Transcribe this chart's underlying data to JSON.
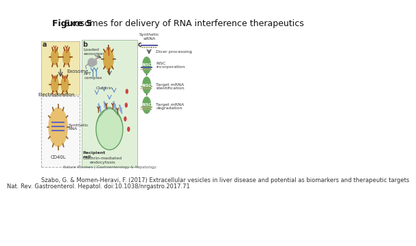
{
  "title_bold": "Figure 5",
  "title_normal": " Exosomes for delivery of RNA interference therapeutics",
  "citation_line1": "Szabo, G. & Momen-Heravi, F. (2017) Extracellular vesicles in liver disease and potential as biomarkers and therapeutic targets",
  "citation_line2": "Nat. Rev. Gastroenterol. Hepatol. doi:10.1038/nrgastro.2017.71",
  "journal_text": "Nature Reviews | Gastroenterology & Hepatology",
  "bg_color": "#ffffff",
  "title_fontsize": 9,
  "citation_fontsize": 6.0,
  "label_a": "a",
  "label_b": "b",
  "label_c": "c",
  "text_exosome": "Exosome",
  "text_electroporation": "Electroporation",
  "text_synthetic_rna": "Synthetic\nRNA",
  "text_cd40l": "CD40L",
  "text_loaded": "Loaded\nexosomes",
  "text_apt_complex": "APT\ncomplex",
  "text_clathrin": "Clathrin",
  "text_recipient_cell": "Recipient\ncell",
  "text_clathrin_mediated": "Clathrin-mediated\nendocytosis",
  "text_synthetic_sirna": "Synthetic\nsiRNA",
  "text_dicer_processing": "Dicer processing",
  "text_risc_incorporation": "RISC\nincorporation",
  "text_target_mrna_id": "Target mRNA\nidentification",
  "text_target_mrna_deg": "Target mRNA\ndegradation",
  "text_risc": "RISC"
}
